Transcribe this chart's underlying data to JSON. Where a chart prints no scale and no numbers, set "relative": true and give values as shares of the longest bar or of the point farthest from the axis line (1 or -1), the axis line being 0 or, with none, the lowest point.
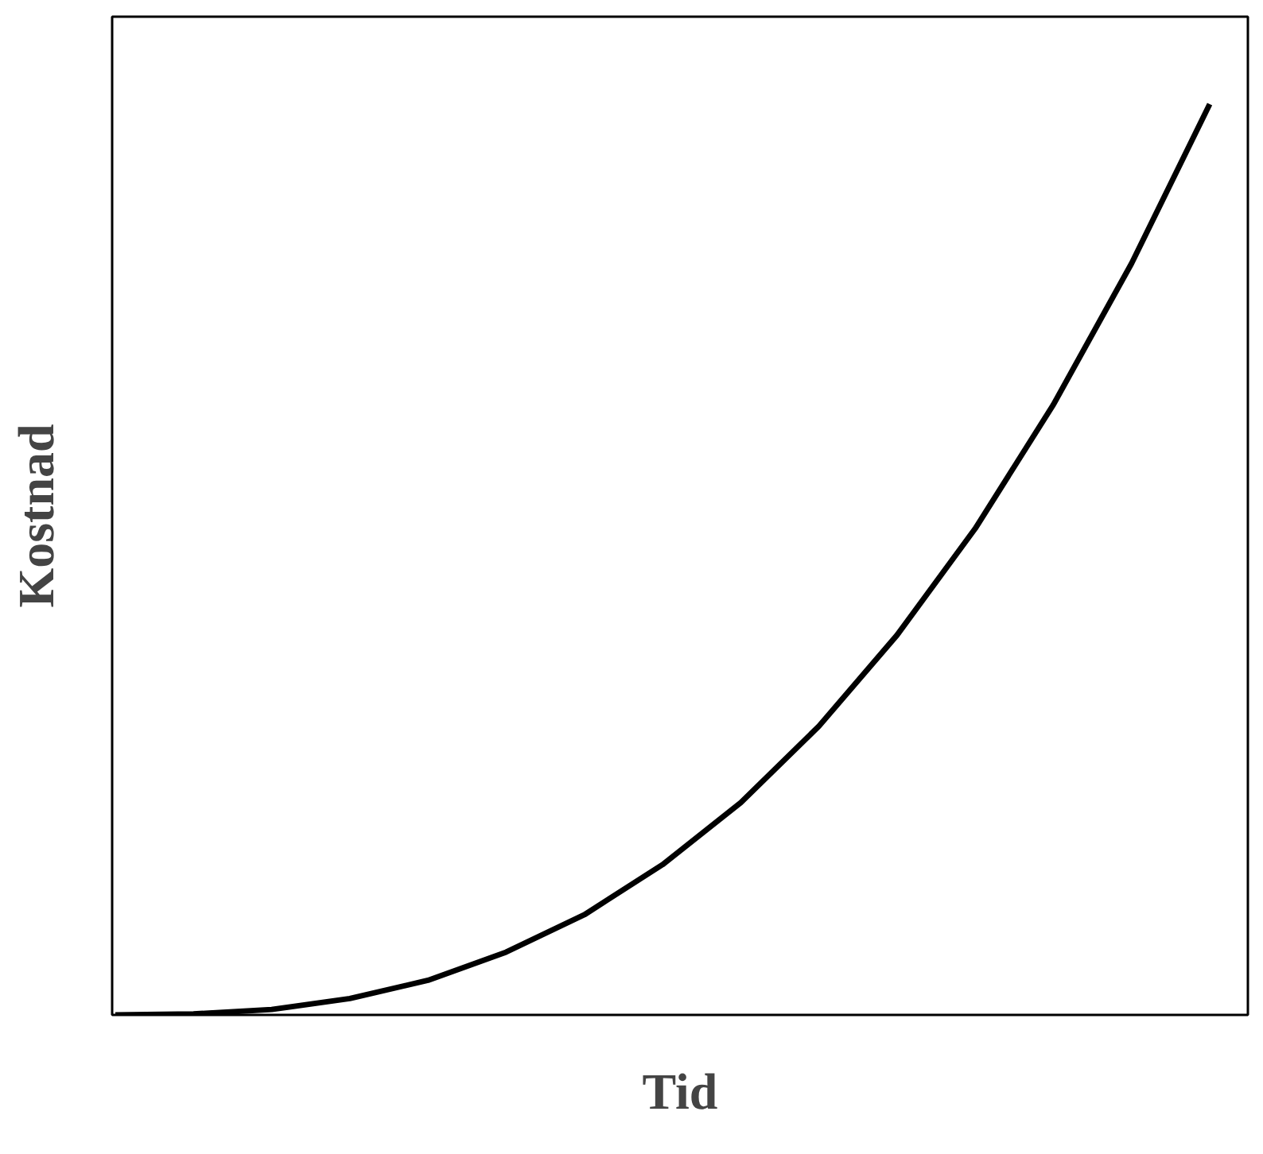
{
  "chart_data": {
    "type": "line",
    "relative": true,
    "xlabel": "Tid",
    "ylabel": "Kostnad",
    "categories": [
      null,
      null,
      null,
      null,
      null,
      null,
      null,
      null,
      null,
      null,
      null,
      null,
      null,
      null,
      null
    ],
    "series": [
      {
        "color": "#000000",
        "values": [
          0,
          0.001,
          0.006,
          0.018,
          0.038,
          0.069,
          0.11,
          0.165,
          0.233,
          0.317,
          0.417,
          0.534,
          0.67,
          0.825,
          1
        ]
      }
    ],
    "marker": "none",
    "line_style": "solid"
  }
}
